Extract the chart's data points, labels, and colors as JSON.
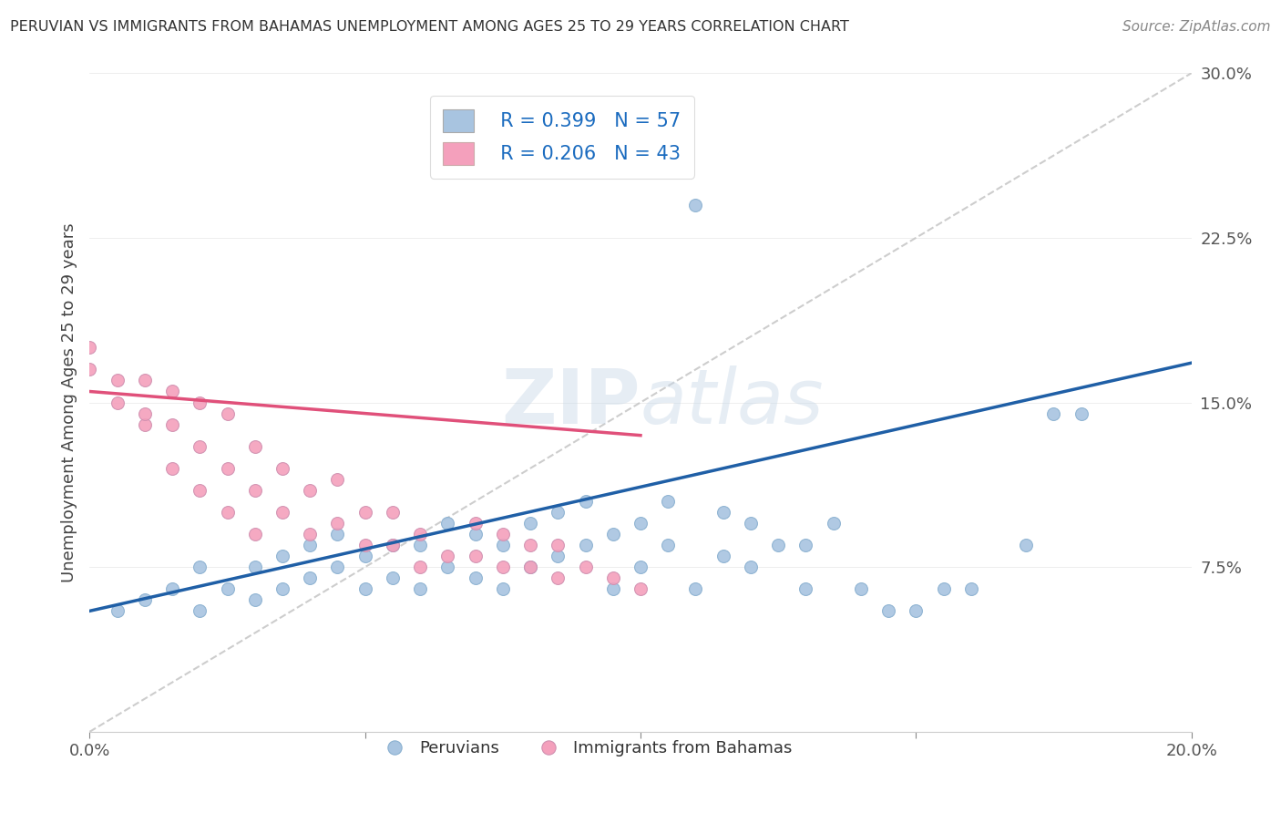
{
  "title": "PERUVIAN VS IMMIGRANTS FROM BAHAMAS UNEMPLOYMENT AMONG AGES 25 TO 29 YEARS CORRELATION CHART",
  "source_text": "Source: ZipAtlas.com",
  "ylabel": "Unemployment Among Ages 25 to 29 years",
  "xlim": [
    0.0,
    0.2
  ],
  "ylim": [
    0.0,
    0.3
  ],
  "xticks": [
    0.0,
    0.05,
    0.1,
    0.15,
    0.2
  ],
  "xticklabels": [
    "0.0%",
    "",
    "",
    "",
    "20.0%"
  ],
  "yticks": [
    0.0,
    0.075,
    0.15,
    0.225,
    0.3
  ],
  "yticklabels": [
    "",
    "7.5%",
    "15.0%",
    "22.5%",
    "30.0%"
  ],
  "blue_R": 0.399,
  "blue_N": 57,
  "pink_R": 0.206,
  "pink_N": 43,
  "blue_color": "#a8c4e0",
  "blue_line_color": "#1f5fa6",
  "pink_color": "#f4a0bc",
  "pink_line_color": "#e0507a",
  "ref_line_color": "#c8c8c8",
  "background_color": "#ffffff",
  "legend_label_blue": "Peruvians",
  "legend_label_pink": "Immigrants from Bahamas",
  "blue_scatter_x": [
    0.005,
    0.01,
    0.015,
    0.02,
    0.02,
    0.025,
    0.03,
    0.03,
    0.035,
    0.035,
    0.04,
    0.04,
    0.045,
    0.045,
    0.05,
    0.05,
    0.055,
    0.055,
    0.06,
    0.06,
    0.065,
    0.065,
    0.07,
    0.07,
    0.075,
    0.075,
    0.075,
    0.08,
    0.08,
    0.085,
    0.085,
    0.09,
    0.09,
    0.095,
    0.095,
    0.1,
    0.1,
    0.105,
    0.105,
    0.11,
    0.11,
    0.115,
    0.115,
    0.12,
    0.12,
    0.125,
    0.13,
    0.13,
    0.135,
    0.14,
    0.145,
    0.15,
    0.155,
    0.16,
    0.17,
    0.175,
    0.18
  ],
  "blue_scatter_y": [
    0.055,
    0.06,
    0.065,
    0.055,
    0.075,
    0.065,
    0.06,
    0.075,
    0.065,
    0.08,
    0.07,
    0.085,
    0.075,
    0.09,
    0.065,
    0.08,
    0.07,
    0.085,
    0.065,
    0.085,
    0.075,
    0.095,
    0.07,
    0.09,
    0.065,
    0.085,
    0.27,
    0.075,
    0.095,
    0.08,
    0.1,
    0.085,
    0.105,
    0.065,
    0.09,
    0.075,
    0.095,
    0.085,
    0.105,
    0.065,
    0.24,
    0.08,
    0.1,
    0.075,
    0.095,
    0.085,
    0.065,
    0.085,
    0.095,
    0.065,
    0.055,
    0.055,
    0.065,
    0.065,
    0.085,
    0.145,
    0.145
  ],
  "pink_scatter_x": [
    0.0,
    0.0,
    0.005,
    0.005,
    0.01,
    0.01,
    0.01,
    0.015,
    0.015,
    0.015,
    0.02,
    0.02,
    0.02,
    0.025,
    0.025,
    0.025,
    0.03,
    0.03,
    0.03,
    0.035,
    0.035,
    0.04,
    0.04,
    0.045,
    0.045,
    0.05,
    0.05,
    0.055,
    0.055,
    0.06,
    0.06,
    0.065,
    0.07,
    0.07,
    0.075,
    0.075,
    0.08,
    0.08,
    0.085,
    0.085,
    0.09,
    0.095,
    0.1
  ],
  "pink_scatter_y": [
    0.165,
    0.175,
    0.15,
    0.16,
    0.14,
    0.16,
    0.145,
    0.12,
    0.14,
    0.155,
    0.11,
    0.13,
    0.15,
    0.1,
    0.12,
    0.145,
    0.09,
    0.11,
    0.13,
    0.1,
    0.12,
    0.09,
    0.11,
    0.095,
    0.115,
    0.085,
    0.1,
    0.085,
    0.1,
    0.075,
    0.09,
    0.08,
    0.08,
    0.095,
    0.075,
    0.09,
    0.075,
    0.085,
    0.07,
    0.085,
    0.075,
    0.07,
    0.065
  ],
  "blue_trend_x": [
    0.0,
    0.2
  ],
  "blue_trend_y": [
    0.055,
    0.168
  ],
  "pink_trend_x": [
    0.0,
    0.1
  ],
  "pink_trend_y": [
    0.155,
    0.135
  ],
  "ref_line_x": [
    0.0,
    0.2
  ],
  "ref_line_y": [
    0.0,
    0.3
  ]
}
